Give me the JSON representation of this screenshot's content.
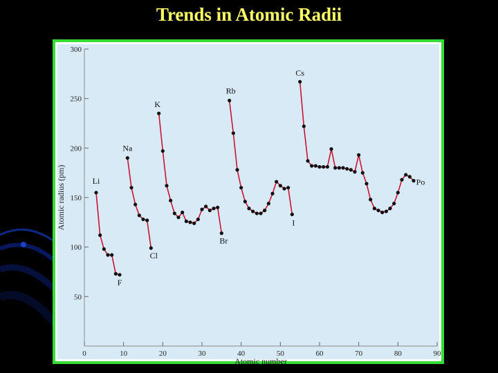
{
  "slide": {
    "title": "Trends in Atomic Radii"
  },
  "colors": {
    "background": "#000000",
    "title": "#ffff66",
    "frame": "#33dd33",
    "plot_bg": "#d8eaf6",
    "line": "#cc1133",
    "marker": "#111111",
    "swirl": "#1133aa"
  },
  "chart_data": {
    "type": "line",
    "title": "",
    "xlabel": "Atomic number",
    "ylabel": "Atomic radius (pm)",
    "xlim": [
      0,
      90
    ],
    "ylim": [
      0,
      300
    ],
    "x_ticks": [
      0,
      10,
      20,
      30,
      40,
      50,
      60,
      70,
      80,
      90
    ],
    "y_ticks": [
      50,
      100,
      150,
      200,
      250,
      300
    ],
    "grid": false,
    "series": [
      {
        "x": [
          3,
          4,
          5,
          6,
          7,
          8,
          9
        ],
        "y": [
          155,
          112,
          98,
          92,
          92,
          73,
          72
        ]
      },
      {
        "x": [
          11,
          12,
          13,
          14,
          15,
          16,
          17
        ],
        "y": [
          190,
          160,
          143,
          132,
          128,
          127,
          99
        ]
      },
      {
        "x": [
          19,
          20,
          21,
          22,
          23,
          24,
          25,
          26,
          27,
          28,
          29,
          30,
          31,
          32,
          33,
          34,
          35
        ],
        "y": [
          235,
          197,
          162,
          147,
          134,
          130,
          135,
          126,
          125,
          124,
          128,
          138,
          141,
          137,
          139,
          140,
          114
        ]
      },
      {
        "x": [
          37,
          38,
          39,
          40,
          41,
          42,
          43,
          44,
          45,
          46,
          47,
          48,
          49,
          50,
          51,
          52,
          53
        ],
        "y": [
          248,
          215,
          178,
          160,
          146,
          139,
          136,
          134,
          134,
          137,
          144,
          154,
          166,
          162,
          159,
          160,
          133
        ]
      },
      {
        "x": [
          55,
          56,
          57,
          58,
          59,
          60,
          61,
          62,
          63,
          64,
          65,
          66,
          67,
          68,
          69,
          70,
          71,
          72,
          73,
          74,
          75,
          76,
          77,
          78,
          79,
          80,
          81,
          82,
          83,
          84
        ],
        "y": [
          267,
          222,
          187,
          182,
          182,
          181,
          181,
          181,
          199,
          180,
          180,
          180,
          179,
          178,
          176,
          193,
          175,
          164,
          148,
          139,
          137,
          135,
          136,
          139,
          144,
          155,
          168,
          173,
          171,
          167
        ]
      }
    ],
    "annotations": [
      {
        "text": "Li",
        "x": 3,
        "y": 155
      },
      {
        "text": "F",
        "x": 9,
        "y": 72
      },
      {
        "text": "Na",
        "x": 11,
        "y": 190
      },
      {
        "text": "Cl",
        "x": 17,
        "y": 99
      },
      {
        "text": "K",
        "x": 19,
        "y": 235
      },
      {
        "text": "Br",
        "x": 35,
        "y": 114
      },
      {
        "text": "Rb",
        "x": 37,
        "y": 248
      },
      {
        "text": "I",
        "x": 53,
        "y": 133
      },
      {
        "text": "Cs",
        "x": 55,
        "y": 267
      },
      {
        "text": "Po",
        "x": 84,
        "y": 167
      }
    ]
  }
}
